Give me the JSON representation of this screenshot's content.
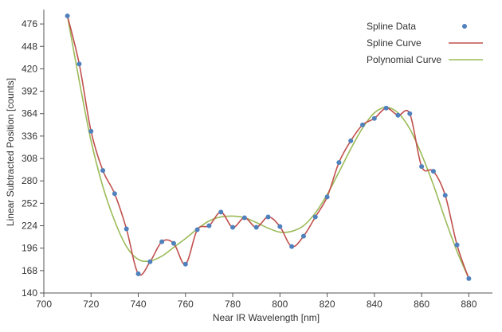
{
  "chart_data": {
    "type": "line",
    "title": "",
    "xlabel": "Near IR Wavelength [nm]",
    "ylabel": "Linear Subtracted Position [counts]",
    "xlim": [
      700,
      890
    ],
    "ylim": [
      140,
      494
    ],
    "x_ticks": [
      700,
      720,
      740,
      760,
      780,
      800,
      820,
      840,
      860,
      880
    ],
    "y_ticks": [
      140,
      168,
      196,
      224,
      252,
      280,
      308,
      336,
      364,
      392,
      420,
      448,
      476
    ],
    "grid": false,
    "legend_position": "top-right",
    "series": [
      {
        "name": "Spline Data",
        "kind": "scatter",
        "color": "#4f81bd",
        "x": [
          710,
          715,
          720,
          725,
          730,
          735,
          740,
          745,
          750,
          755,
          760,
          765,
          770,
          775,
          780,
          785,
          790,
          795,
          800,
          805,
          810,
          815,
          820,
          825,
          830,
          835,
          840,
          845,
          850,
          855,
          860,
          865,
          870,
          875,
          880
        ],
        "y": [
          486,
          426,
          342,
          293,
          264,
          220,
          164,
          179,
          204,
          202,
          176,
          219,
          224,
          241,
          222,
          234,
          222,
          235,
          223,
          198,
          211,
          235,
          260,
          303,
          330,
          350,
          358,
          371,
          362,
          364,
          298,
          292,
          262,
          200,
          158
        ]
      },
      {
        "name": "Spline Curve",
        "kind": "line",
        "color": "#c0504d",
        "smooth": true,
        "x": [
          710,
          715,
          720,
          725,
          730,
          735,
          740,
          745,
          750,
          755,
          760,
          765,
          770,
          775,
          780,
          785,
          790,
          795,
          800,
          805,
          810,
          815,
          820,
          825,
          830,
          835,
          840,
          845,
          850,
          855,
          860,
          865,
          870,
          875,
          880
        ],
        "y": [
          486,
          426,
          342,
          293,
          264,
          220,
          164,
          179,
          204,
          202,
          176,
          219,
          224,
          241,
          222,
          234,
          222,
          235,
          223,
          198,
          211,
          235,
          260,
          303,
          330,
          350,
          358,
          371,
          362,
          364,
          298,
          292,
          262,
          200,
          158
        ]
      },
      {
        "name": "Polynomial Curve",
        "kind": "line",
        "color": "#9bbb59",
        "smooth": true,
        "x": [
          710,
          715,
          720,
          725,
          730,
          735,
          740,
          745,
          750,
          755,
          760,
          765,
          770,
          775,
          780,
          785,
          790,
          795,
          800,
          805,
          810,
          815,
          820,
          825,
          830,
          835,
          840,
          845,
          850,
          855,
          860,
          865,
          870,
          875,
          880
        ],
        "y": [
          486,
          405,
          330,
          273,
          230,
          198,
          182,
          180,
          186,
          197,
          208,
          220,
          230,
          235,
          236,
          234,
          228,
          221,
          216,
          217,
          224,
          240,
          263,
          291,
          320,
          346,
          365,
          372,
          365,
          345,
          313,
          275,
          232,
          192,
          158
        ]
      }
    ]
  }
}
